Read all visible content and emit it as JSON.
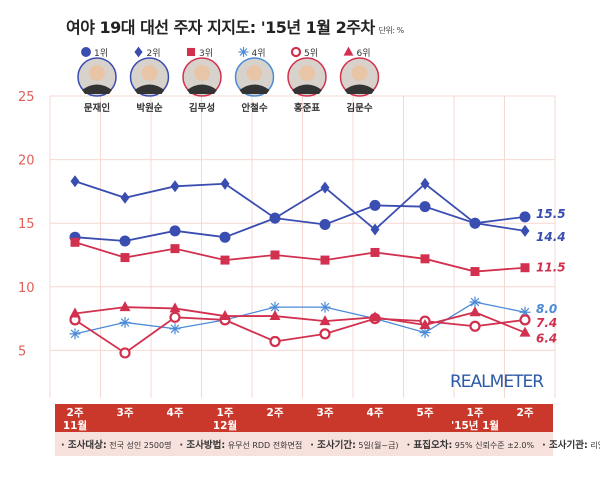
{
  "title": "여야 19대 대선 주자 지지도: '15년 1월 2주차",
  "unit": "단위: %",
  "colors": {
    "blue": "#3a4db0",
    "red": "#d1314e",
    "lightblue": "#4b8bd6",
    "band": "#c9382a",
    "grid": "#f6d8d2",
    "axis_label": "#e0605a"
  },
  "legend": [
    {
      "rank": "1위",
      "marker": "circle",
      "name": "문재인",
      "color": "#3a4db0"
    },
    {
      "rank": "2위",
      "marker": "diamond",
      "name": "박원순",
      "color": "#3a4db0"
    },
    {
      "rank": "3위",
      "marker": "square",
      "name": "김무성",
      "color": "#d1314e"
    },
    {
      "rank": "4위",
      "marker": "asterisk",
      "name": "안철수",
      "color": "#4b8bd6"
    },
    {
      "rank": "5위",
      "marker": "open-circle",
      "name": "홍준표",
      "color": "#d1314e"
    },
    {
      "rank": "6위",
      "marker": "triangle",
      "name": "김문수",
      "color": "#d1314e"
    }
  ],
  "brand": "REALMETER",
  "footer": [
    {
      "label": "· 조사대상:",
      "value": "전국 성인 2500명"
    },
    {
      "label": "· 조사방법:",
      "value": "유무선 RDD 전화면접"
    },
    {
      "label": "· 조사기간:",
      "value": "5일(월~금)"
    },
    {
      "label": "· 표집오차:",
      "value": "95% 신뢰수준 ±2.0%"
    },
    {
      "label": "· 조사기관:",
      "value": "리얼미터"
    }
  ],
  "chart_data": {
    "type": "line",
    "categories": [
      [
        "2주",
        "11월"
      ],
      [
        "3주"
      ],
      [
        "4주"
      ],
      [
        "1주",
        "12월"
      ],
      [
        "2주"
      ],
      [
        "3주"
      ],
      [
        "4주"
      ],
      [
        "5주"
      ],
      [
        "1주",
        "'15년 1월"
      ],
      [
        "2주"
      ]
    ],
    "ylim": [
      0,
      25
    ],
    "yticks": [
      5,
      10,
      15,
      20,
      25
    ],
    "grid": true,
    "series": [
      {
        "name": "문재인",
        "marker": "circle",
        "color": "#3a4db0",
        "values": [
          13.9,
          13.6,
          14.4,
          13.9,
          15.4,
          14.9,
          16.4,
          16.3,
          15.0,
          15.5
        ],
        "end_label": "15.5"
      },
      {
        "name": "박원순",
        "marker": "diamond",
        "color": "#3a4db0",
        "values": [
          18.3,
          17.0,
          17.9,
          18.1,
          15.4,
          17.8,
          14.5,
          18.1,
          15.0,
          14.4
        ],
        "end_label": "14.4"
      },
      {
        "name": "김무성",
        "marker": "square",
        "color": "#d1314e",
        "values": [
          13.5,
          12.3,
          13.0,
          12.1,
          12.5,
          12.1,
          12.7,
          12.2,
          11.2,
          11.5
        ],
        "end_label": "11.5"
      },
      {
        "name": "안철수",
        "marker": "asterisk",
        "color": "#4b8bd6",
        "values": [
          6.3,
          7.2,
          6.7,
          7.4,
          8.4,
          8.4,
          7.5,
          6.4,
          8.8,
          8.0
        ],
        "end_label": "8.0"
      },
      {
        "name": "홍준표",
        "marker": "open-circle",
        "color": "#d1314e",
        "values": [
          7.4,
          4.8,
          7.6,
          7.4,
          5.7,
          6.3,
          7.5,
          7.3,
          6.9,
          7.4
        ],
        "end_label": "7.4"
      },
      {
        "name": "김문수",
        "marker": "triangle",
        "color": "#d1314e",
        "values": [
          7.9,
          8.4,
          8.3,
          7.7,
          7.7,
          7.3,
          7.6,
          7.0,
          8.0,
          6.4
        ],
        "end_label": "6.4"
      }
    ]
  }
}
